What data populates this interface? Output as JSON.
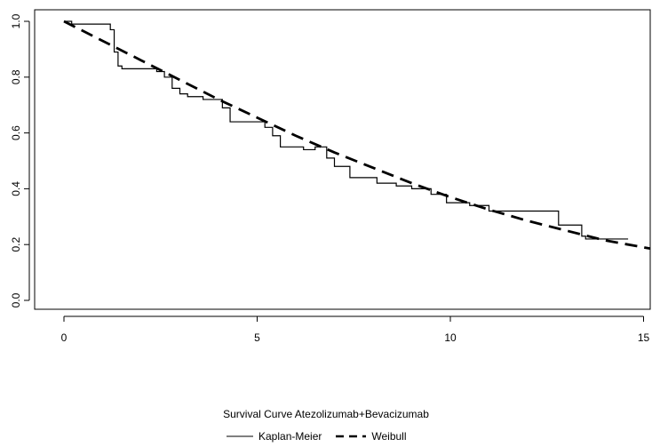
{
  "chart_data": {
    "type": "line",
    "title": "",
    "xlabel": "",
    "ylabel": "",
    "xlim": [
      0,
      15
    ],
    "ylim": [
      0.0,
      1.0
    ],
    "x_ticks": [
      "0",
      "5",
      "10",
      "15"
    ],
    "y_ticks": [
      "0.0",
      "0.2",
      "0.4",
      "0.6",
      "0.8",
      "1.0"
    ],
    "grid": false,
    "legend": {
      "placement": "bottom-center",
      "title": "Survival Curve Atezolizumab+Bevacizumab"
    },
    "series": [
      {
        "name": "Kaplan-Meier",
        "style": "step-solid",
        "color": "#000000",
        "x": [
          0,
          0.2,
          0.9,
          1.2,
          1.3,
          1.4,
          1.5,
          1.8,
          2.4,
          2.6,
          2.8,
          3.0,
          3.2,
          3.6,
          4.0,
          4.1,
          4.3,
          5.2,
          5.4,
          5.6,
          6.2,
          6.5,
          6.8,
          7.0,
          7.4,
          8.1,
          8.6,
          9.0,
          9.5,
          9.9,
          10.5,
          11.0,
          12.8,
          13.4,
          13.5,
          14.6
        ],
        "y": [
          1.0,
          0.99,
          0.99,
          0.97,
          0.89,
          0.84,
          0.83,
          0.83,
          0.82,
          0.8,
          0.76,
          0.74,
          0.73,
          0.72,
          0.72,
          0.69,
          0.64,
          0.62,
          0.59,
          0.55,
          0.54,
          0.55,
          0.51,
          0.48,
          0.44,
          0.42,
          0.41,
          0.4,
          0.38,
          0.35,
          0.34,
          0.32,
          0.27,
          0.23,
          0.22,
          0.22
        ]
      },
      {
        "name": "Weibull",
        "style": "dashed-thick",
        "color": "#000000",
        "x": [
          0,
          1,
          2,
          3,
          4,
          5,
          6,
          7,
          8,
          9,
          10,
          11,
          12,
          13,
          14,
          15.2
        ],
        "y": [
          1.0,
          0.93,
          0.86,
          0.79,
          0.72,
          0.655,
          0.59,
          0.53,
          0.475,
          0.42,
          0.37,
          0.325,
          0.285,
          0.25,
          0.215,
          0.185
        ]
      }
    ]
  },
  "legend_labels": {
    "title": "Survival Curve Atezolizumab+Bevacizumab",
    "km": "Kaplan-Meier",
    "weibull": "Weibull"
  }
}
